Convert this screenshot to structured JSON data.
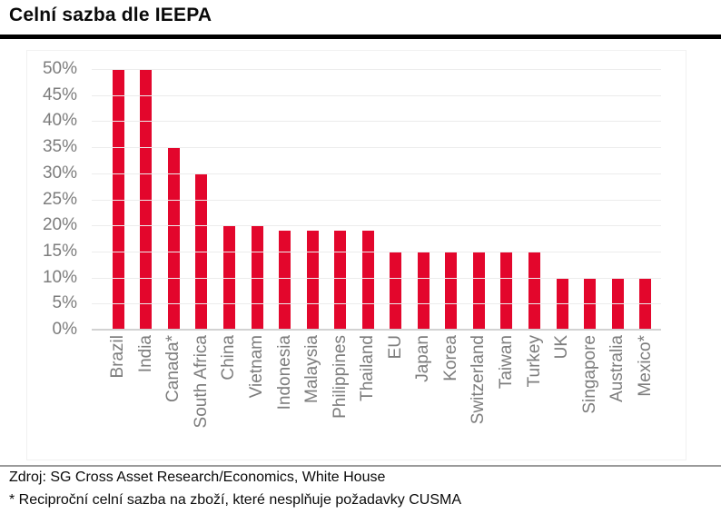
{
  "title": "Celní sazba dle IEEPA",
  "chart_data": {
    "type": "bar",
    "title": "Celní sazba dle IEEPA",
    "categories": [
      "Brazil",
      "India",
      "Canada*",
      "South Africa",
      "China",
      "Vietnam",
      "Indonesia",
      "Malaysia",
      "Philippines",
      "Thailand",
      "EU",
      "Japan",
      "Korea",
      "Switzerland",
      "Taiwan",
      "Turkey",
      "UK",
      "Singapore",
      "Australia",
      "Mexico*"
    ],
    "values": [
      50,
      50,
      35,
      30,
      20,
      20,
      19,
      19,
      19,
      19,
      15,
      15,
      15,
      15,
      15,
      15,
      10,
      10,
      10,
      10
    ],
    "unit": "%",
    "xlabel": "",
    "ylabel": "",
    "ylim": [
      0,
      50
    ],
    "ytick_labels": [
      "50%",
      "45%",
      "40%",
      "35%",
      "30%",
      "25%",
      "20%",
      "15%",
      "10%",
      "5%",
      "0%"
    ],
    "grid": true,
    "legend": false,
    "bar_color": "#E3062C",
    "axis_text_color": "#7d7d7d",
    "gridline_color": "#ececec"
  },
  "footer": {
    "source": "Zdroj: SG Cross Asset Research/Economics, White House",
    "note": "* Reciproční celní sazba na zboží, které nesplňuje požadavky CUSMA"
  }
}
